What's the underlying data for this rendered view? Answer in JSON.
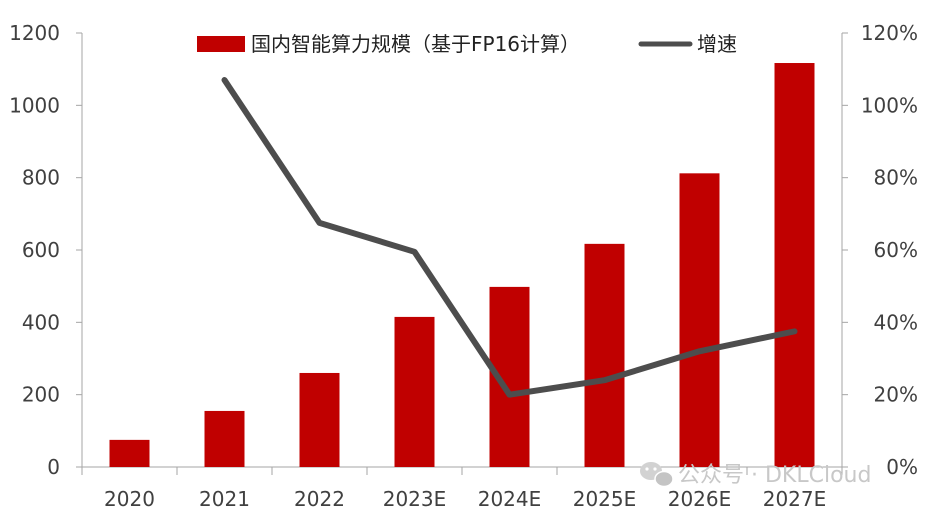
{
  "chart_data": {
    "type": "bar",
    "categories": [
      "2020",
      "2021",
      "2022",
      "2023E",
      "2024E",
      "2025E",
      "2026E",
      "2027E"
    ],
    "series": [
      {
        "name": "国内智能算力规模（基于FP16计算）",
        "type": "bar",
        "axis": "left",
        "color": "#c00000",
        "values": [
          75,
          155,
          260,
          415,
          498,
          617,
          812,
          1117
        ]
      },
      {
        "name": "增速",
        "type": "line",
        "axis": "right",
        "color": "#4d4d4d",
        "values": [
          null,
          1.07,
          0.675,
          0.595,
          0.2,
          0.24,
          0.32,
          0.375
        ]
      }
    ],
    "ylim_left": [
      0,
      1200
    ],
    "yticks_left": [
      "0",
      "200",
      "400",
      "600",
      "800",
      "1000",
      "1200"
    ],
    "ylim_right": [
      0,
      1.2
    ],
    "yticks_right": [
      "0%",
      "20%",
      "40%",
      "60%",
      "80%",
      "100%",
      "120%"
    ],
    "legend_position": "top",
    "grid": false
  },
  "watermark": {
    "text": "公众号 · DKLCloud",
    "icon": "wechat-icon"
  }
}
